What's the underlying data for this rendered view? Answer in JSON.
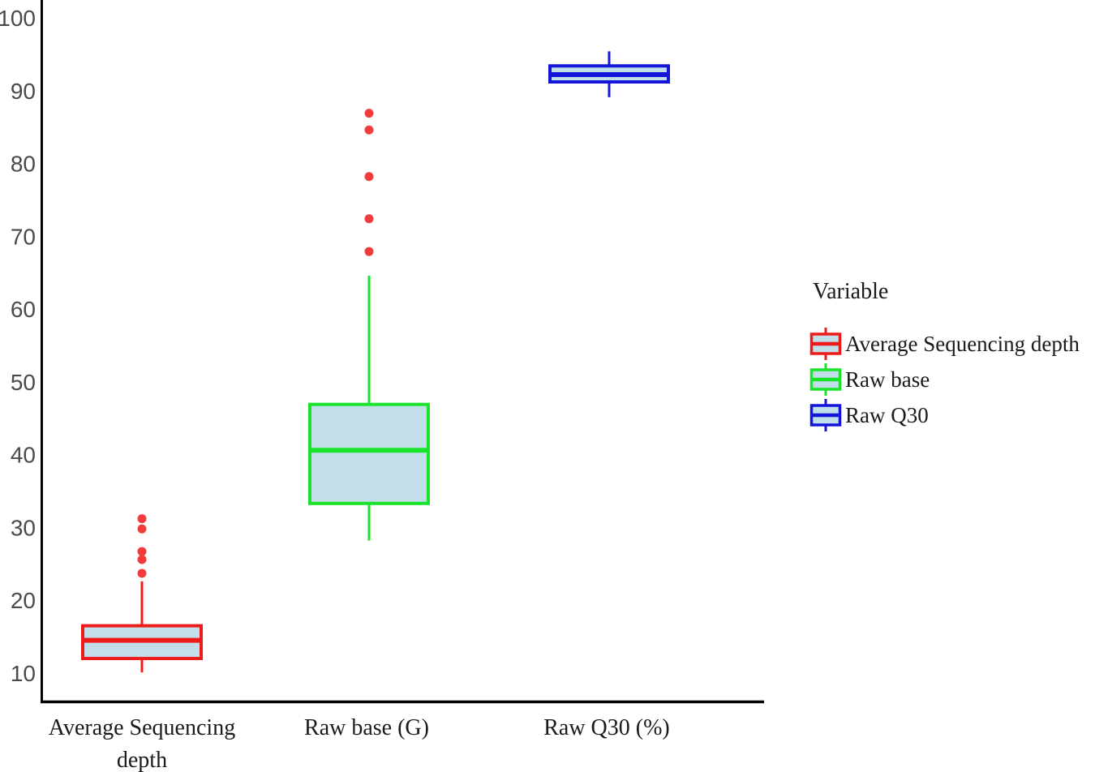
{
  "page": {
    "background_color": "#ffffff"
  },
  "chart_data": {
    "type": "box",
    "title": "",
    "xlabel": "",
    "ylabel": "",
    "ylim": [
      6,
      102
    ],
    "yticks": [
      10,
      20,
      30,
      40,
      50,
      60,
      70,
      80,
      90,
      100
    ],
    "grid": false,
    "legend_position": "right",
    "box_fill_color": "#c2dee9",
    "outlier_color": "#f23b3b",
    "axis_color": "#000000",
    "tick_label_color": "#4a4a4a",
    "categories": [
      "Average Sequencing\ndepth",
      "Raw base (G)",
      "Raw Q30 (%)"
    ],
    "series": [
      {
        "name": "Average Sequencing depth",
        "color": "#ee1b1b",
        "whisker_low": 10.1,
        "q1": 12.0,
        "median": 14.5,
        "q3": 16.5,
        "whisker_high": 22.6,
        "outliers": [
          23.7,
          25.6,
          26.7,
          29.8,
          31.2
        ]
      },
      {
        "name": "Raw base",
        "color": "#19e32b",
        "whisker_low": 28.2,
        "q1": 33.3,
        "median": 40.6,
        "q3": 46.9,
        "whisker_high": 64.6,
        "outliers": [
          67.9,
          72.4,
          78.2,
          84.6,
          86.9
        ]
      },
      {
        "name": "Raw Q30",
        "color": "#1315d9",
        "whisker_low": 89.1,
        "q1": 91.2,
        "median": 92.2,
        "q3": 93.4,
        "whisker_high": 95.4,
        "outliers": []
      }
    ],
    "legend": {
      "title": "Variable",
      "entries": [
        {
          "label": "Average Sequencing depth",
          "color": "#ee1b1b"
        },
        {
          "label": "Raw base",
          "color": "#19e32b"
        },
        {
          "label": "Raw Q30",
          "color": "#1315d9"
        }
      ]
    }
  }
}
